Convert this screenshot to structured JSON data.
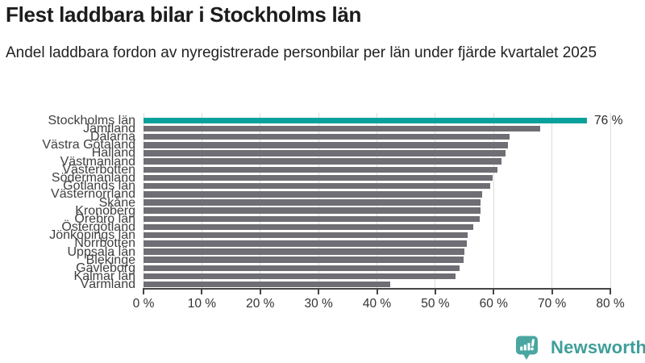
{
  "header": {
    "title": "Flest laddbara bilar i Stockholms län",
    "subtitle": "Andel laddbara fordon av nyregistrerade personbilar per län under fjärde kvartalet 2025"
  },
  "chart_data": {
    "type": "bar",
    "orientation": "horizontal",
    "title": "Flest laddbara bilar i Stockholms län",
    "subtitle": "Andel laddbara fordon av nyregistrerade personbilar per län under fjärde kvartalet 2025",
    "categories": [
      "Stockholms län",
      "Jämtland",
      "Dalarna",
      "Västra Götaland",
      "Halland",
      "Västmanland",
      "Västerbotten",
      "Södermanland",
      "Gotlands län",
      "Västernorrland",
      "Skåne",
      "Kronoberg",
      "Örebro län",
      "Östergötland",
      "Jönköpings län",
      "Norrbotten",
      "Uppsala län",
      "Blekinge",
      "Gävleborg",
      "Kalmar län",
      "Värmland"
    ],
    "values": [
      76,
      68,
      62.7,
      62.4,
      62.1,
      61.4,
      60.6,
      59.8,
      59.4,
      58.1,
      57.8,
      57.7,
      57.6,
      56.5,
      55.6,
      55.4,
      55.0,
      54.9,
      54.2,
      53.5,
      42.3
    ],
    "unit": "%",
    "xlim": [
      0,
      80
    ],
    "x_ticks": [
      0,
      10,
      20,
      30,
      40,
      50,
      60,
      70,
      80
    ],
    "x_tick_labels": [
      "0 %",
      "10 %",
      "20 %",
      "30 %",
      "40 %",
      "50 %",
      "60 %",
      "70 %",
      "80 %"
    ],
    "xlabel": "",
    "ylabel": "",
    "grid": true,
    "legend": false,
    "highlight_index": 0,
    "highlight_color": "#0ba19b",
    "bar_color": "#6e6e74",
    "annotations": [
      {
        "index": 0,
        "text": "76 %"
      }
    ]
  },
  "footer": {
    "brand": "Newsworthy",
    "brand_color": "#3e9e99",
    "icon_color": "#4aa6a1"
  }
}
